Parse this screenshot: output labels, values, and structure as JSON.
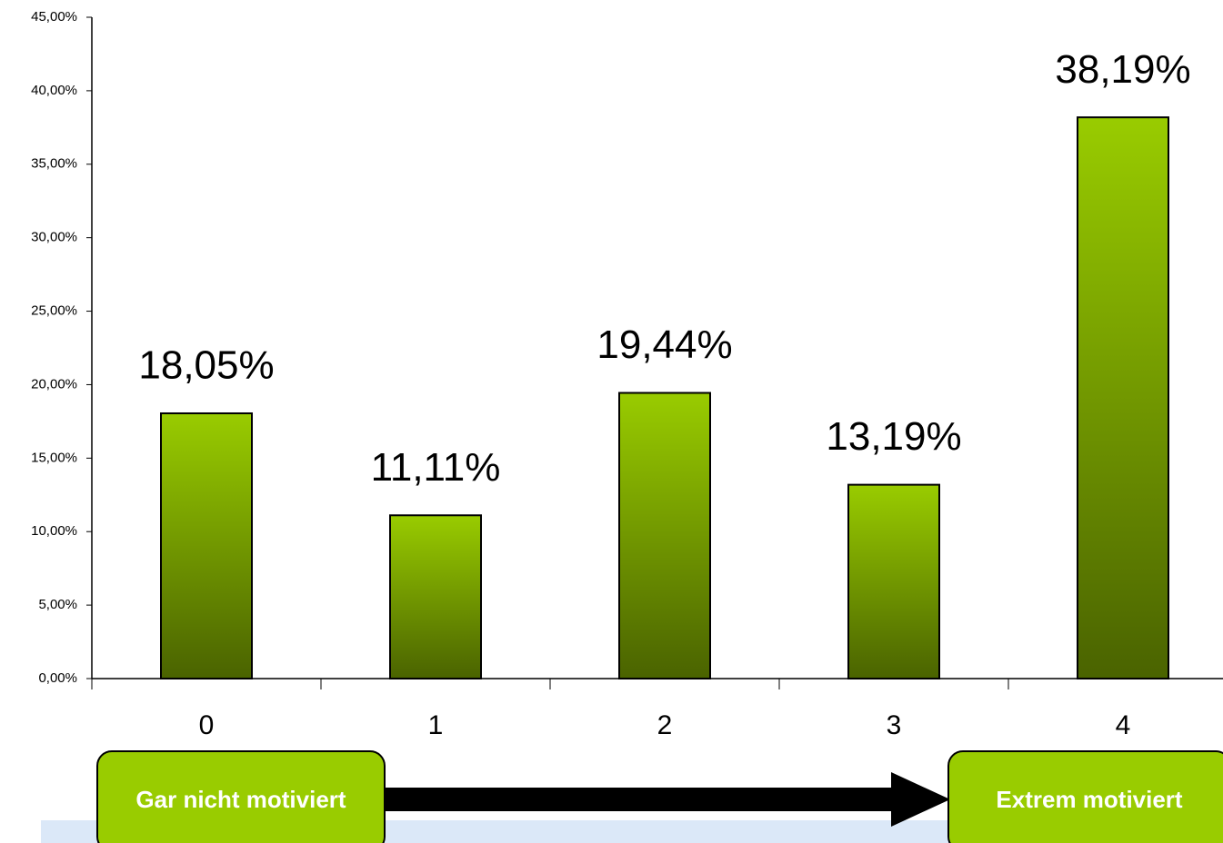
{
  "chart_data": {
    "type": "bar",
    "categories": [
      "0",
      "1",
      "2",
      "3",
      "4"
    ],
    "values": [
      18.05,
      11.11,
      19.44,
      13.19,
      38.19
    ],
    "value_labels": [
      "18,05%",
      "11,11%",
      "19,44%",
      "13,19%",
      "38,19%"
    ],
    "color": "#99cc00",
    "ylim": [
      0,
      45
    ],
    "yticks": [
      {
        "value": 0,
        "label": "0,00%"
      },
      {
        "value": 5,
        "label": "5,00%"
      },
      {
        "value": 10,
        "label": "10,00%"
      },
      {
        "value": 15,
        "label": "15,00%"
      },
      {
        "value": 20,
        "label": "20,00%"
      },
      {
        "value": 25,
        "label": "25,00%"
      },
      {
        "value": 30,
        "label": "30,00%"
      },
      {
        "value": 35,
        "label": "35,00%"
      },
      {
        "value": 40,
        "label": "40,00%"
      },
      {
        "value": 45,
        "label": "45,00%"
      }
    ],
    "annotations": [
      "Gar nicht motiviert",
      "Extrem motiviert"
    ]
  }
}
